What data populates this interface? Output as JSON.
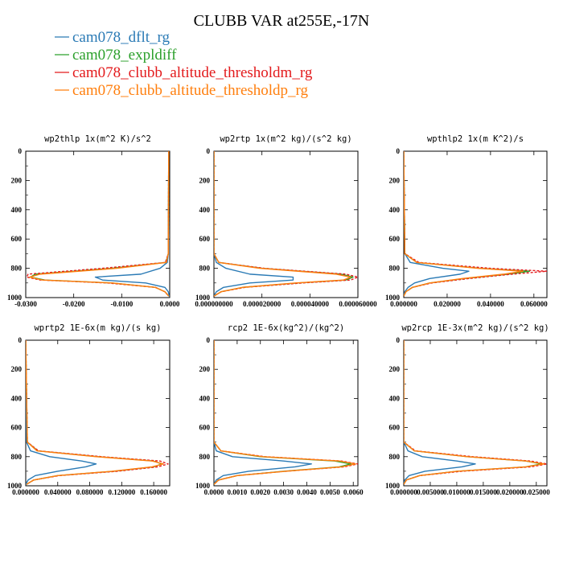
{
  "title": "CLUBB VAR at255E,-17N",
  "legend": [
    {
      "label": "cam078_dflt_rg",
      "color": "#2a7ab5",
      "dash": ""
    },
    {
      "label": "cam078_expldiff",
      "color": "#2ca02c",
      "dash": ""
    },
    {
      "label": "cam078_clubb_altitude_thresholdm_rg",
      "color": "#e31a1c",
      "dash": "3,2"
    },
    {
      "label": "cam078_clubb_altitude_thresholdp_rg",
      "color": "#ff7f0e",
      "dash": ""
    }
  ],
  "chart_data": [
    {
      "type": "line",
      "title": "wp2thlp   1x(m^2 K)/s^2",
      "xlim": [
        -0.03,
        0.0
      ],
      "ylim": [
        1000,
        0
      ],
      "xticks": [
        -0.03,
        -0.02,
        -0.01,
        0.0
      ],
      "xtick_labels": [
        "-0.0300",
        "-0.0200",
        "-0.0100",
        "0.0000"
      ],
      "yticks": [
        0,
        200,
        400,
        600,
        800,
        1000
      ],
      "ytick_labels": [
        "0",
        "200",
        "400",
        "600",
        "800",
        "1000"
      ],
      "levels": [
        0,
        700,
        760,
        800,
        840,
        860,
        880,
        900,
        930,
        960,
        990
      ],
      "series": [
        {
          "name": "cam078_dflt_rg",
          "values": [
            -0.0002,
            -0.0003,
            -0.0005,
            -0.002,
            -0.006,
            -0.0155,
            -0.014,
            -0.005,
            -0.001,
            -0.0003,
            -0.0001
          ]
        },
        {
          "name": "cam078_expldiff",
          "values": [
            -0.0002,
            -0.0003,
            -0.0008,
            -0.012,
            -0.028,
            -0.029,
            -0.026,
            -0.012,
            -0.003,
            -0.001,
            -0.0002
          ]
        },
        {
          "name": "cam078_clubb_altitude_thresholdm_rg",
          "values": [
            -0.0002,
            -0.0003,
            -0.0009,
            -0.014,
            -0.0295,
            -0.0298,
            -0.027,
            -0.013,
            -0.003,
            -0.001,
            -0.0002
          ]
        },
        {
          "name": "cam078_clubb_altitude_thresholdp_rg",
          "values": [
            -0.0002,
            -0.0003,
            -0.0007,
            -0.011,
            -0.027,
            -0.0292,
            -0.0265,
            -0.012,
            -0.003,
            -0.001,
            -0.0002
          ]
        }
      ]
    },
    {
      "type": "line",
      "title": "wp2rtp   1x(m^2 kg)/(s^2 kg)",
      "xlim": [
        0.0,
        6e-05
      ],
      "ylim": [
        1000,
        0
      ],
      "xticks": [
        0.0,
        2e-05,
        4e-05,
        6e-05
      ],
      "xtick_labels": [
        "0.000000000",
        "0.000020000",
        "0.000040000",
        "0.000060000"
      ],
      "yticks": [
        0,
        200,
        400,
        600,
        800,
        1000
      ],
      "ytick_labels": [
        "0",
        "200",
        "400",
        "600",
        "800",
        "1000"
      ],
      "levels": [
        0,
        700,
        760,
        800,
        840,
        860,
        880,
        900,
        930,
        960,
        990
      ],
      "series": [
        {
          "name": "cam078_dflt_rg",
          "values": [
            0.0,
            0.0,
            1e-06,
            5e-06,
            1.5e-05,
            3.3e-05,
            3.3e-05,
            1.5e-05,
            4e-06,
            1e-06,
            0.0
          ]
        },
        {
          "name": "cam078_expldiff",
          "values": [
            0.0,
            0.0,
            2e-06,
            2e-05,
            5.3e-05,
            5.8e-05,
            5.5e-05,
            3.5e-05,
            1.2e-05,
            3e-06,
            0.0
          ]
        },
        {
          "name": "cam078_clubb_altitude_thresholdm_rg",
          "values": [
            0.0,
            0.0,
            2e-06,
            2.1e-05,
            5.5e-05,
            6e-05,
            5.7e-05,
            3.7e-05,
            1.3e-05,
            3e-06,
            0.0
          ]
        },
        {
          "name": "cam078_clubb_altitude_thresholdp_rg",
          "values": [
            0.0,
            0.0,
            2e-06,
            1.9e-05,
            5.1e-05,
            5.7e-05,
            5.4e-05,
            3.4e-05,
            1.2e-05,
            3e-06,
            0.0
          ]
        }
      ]
    },
    {
      "type": "line",
      "title": "wpthlp2   1x(m K^2)/s",
      "xlim": [
        0.0,
        0.066
      ],
      "ylim": [
        1000,
        0
      ],
      "xticks": [
        0.0,
        0.02,
        0.04,
        0.06
      ],
      "xtick_labels": [
        "0.000000",
        "0.020000",
        "0.040000",
        "0.060000"
      ],
      "yticks": [
        0,
        200,
        400,
        600,
        800,
        1000
      ],
      "ytick_labels": [
        "0",
        "200",
        "400",
        "600",
        "800",
        "1000"
      ],
      "levels": [
        0,
        700,
        760,
        800,
        820,
        840,
        870,
        900,
        930,
        960,
        990
      ],
      "series": [
        {
          "name": "cam078_dflt_rg",
          "values": [
            0.0,
            0.0005,
            0.003,
            0.018,
            0.03,
            0.026,
            0.012,
            0.005,
            0.002,
            0.0005,
            0.0
          ]
        },
        {
          "name": "cam078_expldiff",
          "values": [
            0.0,
            0.0005,
            0.006,
            0.035,
            0.058,
            0.048,
            0.028,
            0.012,
            0.004,
            0.001,
            0.0
          ]
        },
        {
          "name": "cam078_clubb_altitude_thresholdm_rg",
          "values": [
            0.0,
            0.0005,
            0.007,
            0.04,
            0.066,
            0.05,
            0.03,
            0.013,
            0.004,
            0.001,
            0.0
          ]
        },
        {
          "name": "cam078_clubb_altitude_thresholdp_rg",
          "values": [
            0.0,
            0.0005,
            0.006,
            0.034,
            0.055,
            0.046,
            0.027,
            0.012,
            0.004,
            0.001,
            0.0
          ]
        }
      ]
    },
    {
      "type": "line",
      "title": "wprtp2   1E-6x(m kg)/(s kg)",
      "xlim": [
        0.0,
        0.18
      ],
      "ylim": [
        1000,
        0
      ],
      "xticks": [
        0.0,
        0.04,
        0.08,
        0.12,
        0.16
      ],
      "xtick_labels": [
        "0.000000",
        "0.040000",
        "0.080000",
        "0.120000",
        "0.160000"
      ],
      "yticks": [
        0,
        200,
        400,
        600,
        800,
        1000
      ],
      "ytick_labels": [
        "0",
        "200",
        "400",
        "600",
        "800",
        "1000"
      ],
      "levels": [
        0,
        700,
        760,
        800,
        830,
        850,
        870,
        900,
        930,
        960,
        990
      ],
      "series": [
        {
          "name": "cam078_dflt_rg",
          "values": [
            0.0,
            0.001,
            0.006,
            0.03,
            0.07,
            0.088,
            0.075,
            0.04,
            0.012,
            0.003,
            0.0
          ]
        },
        {
          "name": "cam078_expldiff",
          "values": [
            0.0,
            0.002,
            0.015,
            0.09,
            0.16,
            0.17,
            0.16,
            0.11,
            0.04,
            0.01,
            0.001
          ]
        },
        {
          "name": "cam078_clubb_altitude_thresholdm_rg",
          "values": [
            0.0,
            0.002,
            0.016,
            0.095,
            0.168,
            0.178,
            0.165,
            0.115,
            0.042,
            0.01,
            0.001
          ]
        },
        {
          "name": "cam078_clubb_altitude_thresholdp_rg",
          "values": [
            0.0,
            0.002,
            0.014,
            0.088,
            0.158,
            0.172,
            0.158,
            0.108,
            0.04,
            0.01,
            0.001
          ]
        }
      ]
    },
    {
      "type": "line",
      "title": "rcp2   1E-6x(kg^2)/(kg^2)",
      "xlim": [
        0.0,
        0.0062
      ],
      "ylim": [
        1000,
        0
      ],
      "xticks": [
        0.0,
        0.001,
        0.002,
        0.003,
        0.004,
        0.005,
        0.006
      ],
      "xtick_labels": [
        "0.0000",
        "0.0010",
        "0.0020",
        "0.0030",
        "0.0040",
        "0.0050",
        "0.0060"
      ],
      "yticks": [
        0,
        200,
        400,
        600,
        800,
        1000
      ],
      "ytick_labels": [
        "0",
        "200",
        "400",
        "600",
        "800",
        "1000"
      ],
      "levels": [
        0,
        700,
        760,
        800,
        830,
        850,
        870,
        900,
        930,
        960,
        990
      ],
      "series": [
        {
          "name": "cam078_dflt_rg",
          "values": [
            0.0,
            0.0,
            0.0001,
            0.0008,
            0.003,
            0.0042,
            0.0035,
            0.0015,
            0.0004,
            0.0001,
            0.0
          ]
        },
        {
          "name": "cam078_expldiff",
          "values": [
            0.0,
            0.0,
            0.0003,
            0.002,
            0.0052,
            0.0059,
            0.0054,
            0.003,
            0.001,
            0.0002,
            0.0
          ]
        },
        {
          "name": "cam078_clubb_altitude_thresholdm_rg",
          "values": [
            0.0,
            0.0,
            0.0003,
            0.0022,
            0.0055,
            0.0062,
            0.0056,
            0.0031,
            0.001,
            0.0002,
            0.0
          ]
        },
        {
          "name": "cam078_clubb_altitude_thresholdp_rg",
          "values": [
            0.0,
            0.0,
            0.0003,
            0.0021,
            0.0054,
            0.0061,
            0.0055,
            0.0031,
            0.001,
            0.0002,
            0.0
          ]
        }
      ]
    },
    {
      "type": "line",
      "title": "wp2rcp   1E-3x(m^2 kg)/(s^2 kg)",
      "xlim": [
        0.0,
        0.027
      ],
      "ylim": [
        1000,
        0
      ],
      "xticks": [
        0.0,
        0.005,
        0.01,
        0.015,
        0.02,
        0.025
      ],
      "xtick_labels": [
        "0.000000",
        "0.005000",
        "0.010000",
        "0.015000",
        "0.020000",
        "0.025000"
      ],
      "yticks": [
        0,
        200,
        400,
        600,
        800,
        1000
      ],
      "ytick_labels": [
        "0",
        "200",
        "400",
        "600",
        "800",
        "1000"
      ],
      "levels": [
        0,
        700,
        760,
        800,
        830,
        850,
        870,
        900,
        930,
        960,
        990
      ],
      "series": [
        {
          "name": "cam078_dflt_rg",
          "values": [
            0.0,
            0.0,
            0.0008,
            0.0035,
            0.01,
            0.0135,
            0.011,
            0.004,
            0.001,
            0.0002,
            0.0
          ]
        },
        {
          "name": "cam078_expldiff",
          "values": [
            0.0,
            0.0,
            0.002,
            0.012,
            0.023,
            0.026,
            0.023,
            0.01,
            0.003,
            0.0005,
            0.0
          ]
        },
        {
          "name": "cam078_clubb_altitude_thresholdm_rg",
          "values": [
            0.0,
            0.0,
            0.0022,
            0.013,
            0.024,
            0.027,
            0.024,
            0.011,
            0.003,
            0.0005,
            0.0
          ]
        },
        {
          "name": "cam078_clubb_altitude_thresholdp_rg",
          "values": [
            0.0,
            0.0,
            0.002,
            0.012,
            0.023,
            0.0265,
            0.023,
            0.01,
            0.003,
            0.0005,
            0.0
          ]
        }
      ]
    }
  ]
}
